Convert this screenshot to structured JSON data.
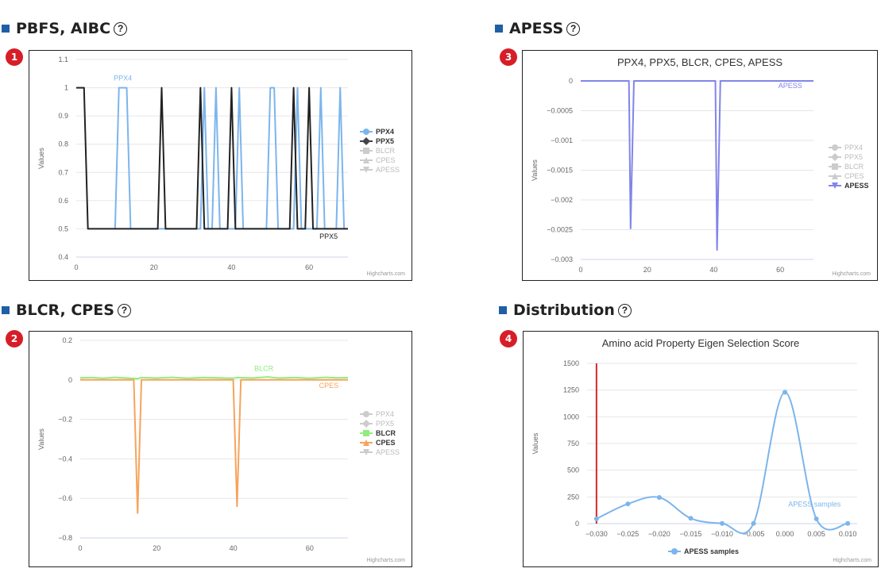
{
  "sections": [
    {
      "title": "PBFS, AIBC",
      "badge": "1",
      "help": "?"
    },
    {
      "title": "BLCR, CPES",
      "badge": "2",
      "help": "?"
    },
    {
      "title": "APESS",
      "badge": "3",
      "help": "?"
    },
    {
      "title": "Distribution",
      "badge": "4",
      "help": "?"
    }
  ],
  "credits": "Highcharts.com",
  "chart_data": [
    {
      "id": "c1",
      "type": "line",
      "title": "",
      "xlabel": "",
      "ylabel": "Values",
      "xlim": [
        0,
        70
      ],
      "ylim": [
        0.4,
        1.1
      ],
      "xticks": [
        0,
        20,
        40,
        60
      ],
      "xtick_labels": [
        "0",
        "20",
        "40",
        "60"
      ],
      "yticks": [
        0.4,
        0.5,
        0.6,
        0.7,
        0.8,
        0.9,
        1,
        1.1
      ],
      "ytick_labels": [
        "0.4",
        "0.5",
        "0.6",
        "0.7",
        "0.8",
        "0.9",
        "1",
        "1.1"
      ],
      "grid": true,
      "legend_position": "right",
      "legend": [
        {
          "name": "PPX4",
          "color": "#7cb5ec",
          "symbol": "circle",
          "active": true
        },
        {
          "name": "PPX5",
          "color": "#434348",
          "symbol": "diamond",
          "active": true
        },
        {
          "name": "BLCR",
          "color": "#cccccc",
          "symbol": "square",
          "active": false
        },
        {
          "name": "CPES",
          "color": "#cccccc",
          "symbol": "triangle",
          "active": false
        },
        {
          "name": "APESS",
          "color": "#cccccc",
          "symbol": "triangle-down",
          "active": false
        }
      ],
      "series": [
        {
          "name": "PPX4",
          "color": "#7cb5ec",
          "label_at": [
            12,
            1.025
          ],
          "points": [
            [
              10,
              0.5
            ],
            [
              11,
              1
            ],
            [
              13,
              1
            ],
            [
              14,
              0.5
            ],
            [
              32,
              0.5
            ],
            [
              33,
              1
            ],
            [
              34,
              0.5
            ],
            [
              35,
              0.5
            ],
            [
              36,
              1
            ],
            [
              37,
              0.5
            ],
            [
              41,
              0.5
            ],
            [
              42,
              1
            ],
            [
              43,
              0.5
            ],
            [
              49,
              0.5
            ],
            [
              50,
              1
            ],
            [
              51,
              1
            ],
            [
              52,
              0.5
            ],
            [
              56,
              0.5
            ],
            [
              57,
              1
            ],
            [
              58,
              0.5
            ],
            [
              62,
              0.5
            ],
            [
              63,
              1
            ],
            [
              64,
              0.5
            ],
            [
              67,
              0.5
            ],
            [
              68,
              1
            ],
            [
              69,
              0.5
            ]
          ]
        },
        {
          "name": "PPX5",
          "color": "#222222",
          "label_at": [
            65,
            0.465
          ],
          "points": [
            [
              0,
              1
            ],
            [
              2,
              1
            ],
            [
              3,
              0.5
            ],
            [
              21,
              0.5
            ],
            [
              22,
              1
            ],
            [
              23,
              0.5
            ],
            [
              31,
              0.5
            ],
            [
              32,
              1
            ],
            [
              33,
              0.5
            ],
            [
              39,
              0.5
            ],
            [
              40,
              1
            ],
            [
              41,
              0.5
            ],
            [
              55,
              0.5
            ],
            [
              56,
              1
            ],
            [
              57,
              0.5
            ],
            [
              59,
              0.5
            ],
            [
              60,
              1
            ],
            [
              61,
              0.5
            ],
            [
              70,
              0.5
            ]
          ]
        }
      ]
    },
    {
      "id": "c2",
      "type": "line",
      "title": "",
      "xlabel": "",
      "ylabel": "Values",
      "xlim": [
        0,
        70
      ],
      "ylim": [
        -0.8,
        0.2
      ],
      "xticks": [
        0,
        20,
        40,
        60
      ],
      "xtick_labels": [
        "0",
        "20",
        "40",
        "60"
      ],
      "yticks": [
        -0.8,
        -0.6,
        -0.4,
        -0.2,
        0,
        0.2
      ],
      "ytick_labels": [
        "−0.8",
        "−0.6",
        "−0.4",
        "−0.2",
        "0",
        "0.2"
      ],
      "grid": true,
      "legend_position": "right",
      "legend": [
        {
          "name": "PPX4",
          "color": "#cccccc",
          "symbol": "circle",
          "active": false
        },
        {
          "name": "PPX5",
          "color": "#cccccc",
          "symbol": "diamond",
          "active": false
        },
        {
          "name": "BLCR",
          "color": "#90ed7d",
          "symbol": "square",
          "active": true
        },
        {
          "name": "CPES",
          "color": "#f7a35c",
          "symbol": "triangle",
          "active": true
        },
        {
          "name": "APESS",
          "color": "#cccccc",
          "symbol": "triangle-down",
          "active": false
        }
      ],
      "series": [
        {
          "name": "BLCR",
          "color": "#90ed7d",
          "label_at": [
            48,
            0.045
          ],
          "points": [
            [
              0,
              0.01
            ],
            [
              3,
              0.012
            ],
            [
              6,
              0.008
            ],
            [
              9,
              0.013
            ],
            [
              12,
              0.009
            ],
            [
              15,
              0.006
            ],
            [
              16,
              0.012
            ],
            [
              20,
              0.009
            ],
            [
              24,
              0.013
            ],
            [
              28,
              0.008
            ],
            [
              32,
              0.012
            ],
            [
              36,
              0.01
            ],
            [
              40,
              0.008
            ],
            [
              41,
              0.012
            ],
            [
              45,
              0.009
            ],
            [
              49,
              0.015
            ],
            [
              52,
              0.009
            ],
            [
              56,
              0.012
            ],
            [
              60,
              0.008
            ],
            [
              64,
              0.013
            ],
            [
              67,
              0.01
            ],
            [
              70,
              0.011
            ]
          ]
        },
        {
          "name": "CPES",
          "color": "#f7a35c",
          "label_at": [
            65,
            -0.04
          ],
          "points": [
            [
              0,
              0
            ],
            [
              14,
              0
            ],
            [
              15,
              -0.675
            ],
            [
              16,
              0
            ],
            [
              40,
              0
            ],
            [
              41,
              -0.64
            ],
            [
              42,
              0
            ],
            [
              70,
              0
            ]
          ]
        }
      ]
    },
    {
      "id": "c3",
      "type": "line",
      "title": "PPX4, PPX5, BLCR, CPES, APESS",
      "xlabel": "",
      "ylabel": "Values",
      "xlim": [
        0,
        70
      ],
      "ylim": [
        -0.003,
        0
      ],
      "xticks": [
        0,
        20,
        40,
        60
      ],
      "xtick_labels": [
        "0",
        "20",
        "40",
        "60"
      ],
      "yticks": [
        -0.003,
        -0.0025,
        -0.002,
        -0.0015,
        -0.001,
        -0.0005,
        0
      ],
      "ytick_labels": [
        "−0.003",
        "−0.0025",
        "−0.002",
        "−0.0015",
        "−0.001",
        "−0.0005",
        "0"
      ],
      "grid": true,
      "legend_position": "right",
      "legend": [
        {
          "name": "PPX4",
          "color": "#cccccc",
          "symbol": "circle",
          "active": false
        },
        {
          "name": "PPX5",
          "color": "#cccccc",
          "symbol": "diamond",
          "active": false
        },
        {
          "name": "BLCR",
          "color": "#cccccc",
          "symbol": "square",
          "active": false
        },
        {
          "name": "CPES",
          "color": "#cccccc",
          "symbol": "triangle",
          "active": false
        },
        {
          "name": "APESS",
          "color": "#8085e9",
          "symbol": "triangle-down",
          "active": true
        }
      ],
      "series": [
        {
          "name": "APESS",
          "color": "#8085e9",
          "label_at": [
            63,
            -0.00012
          ],
          "points": [
            [
              0,
              0
            ],
            [
              14.5,
              0
            ],
            [
              15,
              -0.00248
            ],
            [
              16,
              0
            ],
            [
              40.5,
              0
            ],
            [
              41,
              -0.00284
            ],
            [
              42,
              0
            ],
            [
              70,
              0
            ]
          ]
        }
      ]
    },
    {
      "id": "c4",
      "type": "line",
      "title": "Amino acid Property Eigen Selection Score",
      "xlabel": "",
      "ylabel": "Values",
      "xlim": [
        -0.0315,
        0.0115
      ],
      "ylim": [
        0,
        1500
      ],
      "xticks": [
        -0.03,
        -0.025,
        -0.02,
        -0.015,
        -0.01,
        -0.005,
        0,
        0.005,
        0.01
      ],
      "xtick_labels": [
        "−0.030",
        "−0.025",
        "−0.020",
        "−0.015",
        "−0.010",
        "−0.005",
        "0.000",
        "0.005",
        "0.010"
      ],
      "yticks": [
        0,
        250,
        500,
        750,
        1000,
        1250,
        1500
      ],
      "ytick_labels": [
        "0",
        "250",
        "500",
        "750",
        "1000",
        "1250",
        "1500"
      ],
      "grid": true,
      "legend_position": "bottom",
      "legend": [
        {
          "name": "APESS samples",
          "color": "#7cb5ec",
          "symbol": "circle",
          "active": true
        }
      ],
      "series": [
        {
          "name": "APESS samples",
          "color": "#7cb5ec",
          "smooth": true,
          "markers": true,
          "label_at": [
            0.0047,
            160
          ],
          "points": [
            [
              -0.03,
              45
            ],
            [
              -0.025,
              185
            ],
            [
              -0.02,
              245
            ],
            [
              -0.015,
              50
            ],
            [
              -0.01,
              2
            ],
            [
              -0.005,
              2
            ],
            [
              0,
              1230
            ],
            [
              0.005,
              45
            ],
            [
              0.01,
              2
            ]
          ]
        }
      ],
      "vertical_line": {
        "x": -0.03,
        "color": "#d62728"
      }
    }
  ]
}
